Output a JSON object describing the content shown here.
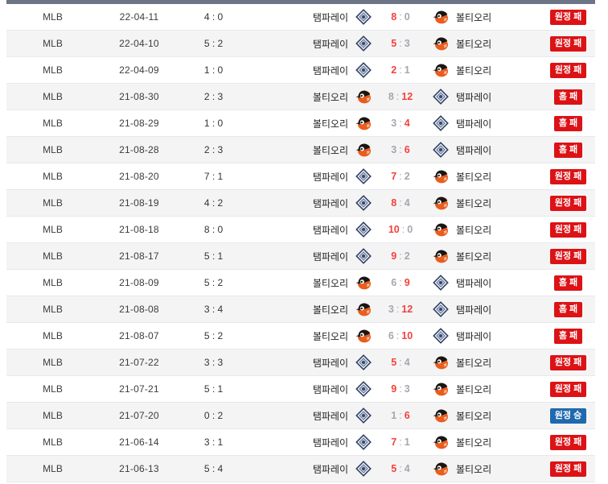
{
  "page": {
    "title": "MLB head-to-head results table"
  },
  "teams": {
    "tampa": {
      "name": "탬파레이",
      "icon": "rays-diamond-icon"
    },
    "balt": {
      "name": "볼티오리",
      "icon": "orioles-bird-icon"
    }
  },
  "colors": {
    "top_bar": "#6b7585",
    "row_alt_bg": "#f4f4f5",
    "badge_loss_red": "#dc1216",
    "badge_win_blue": "#1f69ae",
    "score_winner_red": "#f4403c",
    "score_loser_gray": "#a2a8b0"
  },
  "rows": [
    {
      "league": "MLB",
      "date": "22-04-11",
      "half_score": "4 : 0",
      "home": "탬파레이",
      "home_team": "tampa",
      "away": "볼티오리",
      "away_team": "balt",
      "score_home": "8",
      "score_away": "0",
      "win_side": "home",
      "result": "원정 패",
      "result_type": "loss"
    },
    {
      "league": "MLB",
      "date": "22-04-10",
      "half_score": "5 : 2",
      "home": "탬파레이",
      "home_team": "tampa",
      "away": "볼티오리",
      "away_team": "balt",
      "score_home": "5",
      "score_away": "3",
      "win_side": "home",
      "result": "원정 패",
      "result_type": "loss"
    },
    {
      "league": "MLB",
      "date": "22-04-09",
      "half_score": "1 : 0",
      "home": "탬파레이",
      "home_team": "tampa",
      "away": "볼티오리",
      "away_team": "balt",
      "score_home": "2",
      "score_away": "1",
      "win_side": "home",
      "result": "원정 패",
      "result_type": "loss"
    },
    {
      "league": "MLB",
      "date": "21-08-30",
      "half_score": "2 : 3",
      "home": "볼티오리",
      "home_team": "balt",
      "away": "탬파레이",
      "away_team": "tampa",
      "score_home": "8",
      "score_away": "12",
      "win_side": "away",
      "result": "홈 패",
      "result_type": "loss"
    },
    {
      "league": "MLB",
      "date": "21-08-29",
      "half_score": "1 : 0",
      "home": "볼티오리",
      "home_team": "balt",
      "away": "탬파레이",
      "away_team": "tampa",
      "score_home": "3",
      "score_away": "4",
      "win_side": "away",
      "result": "홈 패",
      "result_type": "loss"
    },
    {
      "league": "MLB",
      "date": "21-08-28",
      "half_score": "2 : 3",
      "home": "볼티오리",
      "home_team": "balt",
      "away": "탬파레이",
      "away_team": "tampa",
      "score_home": "3",
      "score_away": "6",
      "win_side": "away",
      "result": "홈 패",
      "result_type": "loss"
    },
    {
      "league": "MLB",
      "date": "21-08-20",
      "half_score": "7 : 1",
      "home": "탬파레이",
      "home_team": "tampa",
      "away": "볼티오리",
      "away_team": "balt",
      "score_home": "7",
      "score_away": "2",
      "win_side": "home",
      "result": "원정 패",
      "result_type": "loss"
    },
    {
      "league": "MLB",
      "date": "21-08-19",
      "half_score": "4 : 2",
      "home": "탬파레이",
      "home_team": "tampa",
      "away": "볼티오리",
      "away_team": "balt",
      "score_home": "8",
      "score_away": "4",
      "win_side": "home",
      "result": "원정 패",
      "result_type": "loss"
    },
    {
      "league": "MLB",
      "date": "21-08-18",
      "half_score": "8 : 0",
      "home": "탬파레이",
      "home_team": "tampa",
      "away": "볼티오리",
      "away_team": "balt",
      "score_home": "10",
      "score_away": "0",
      "win_side": "home",
      "result": "원정 패",
      "result_type": "loss"
    },
    {
      "league": "MLB",
      "date": "21-08-17",
      "half_score": "5 : 1",
      "home": "탬파레이",
      "home_team": "tampa",
      "away": "볼티오리",
      "away_team": "balt",
      "score_home": "9",
      "score_away": "2",
      "win_side": "home",
      "result": "원정 패",
      "result_type": "loss"
    },
    {
      "league": "MLB",
      "date": "21-08-09",
      "half_score": "5 : 2",
      "home": "볼티오리",
      "home_team": "balt",
      "away": "탬파레이",
      "away_team": "tampa",
      "score_home": "6",
      "score_away": "9",
      "win_side": "away",
      "result": "홈 패",
      "result_type": "loss"
    },
    {
      "league": "MLB",
      "date": "21-08-08",
      "half_score": "3 : 4",
      "home": "볼티오리",
      "home_team": "balt",
      "away": "탬파레이",
      "away_team": "tampa",
      "score_home": "3",
      "score_away": "12",
      "win_side": "away",
      "result": "홈 패",
      "result_type": "loss"
    },
    {
      "league": "MLB",
      "date": "21-08-07",
      "half_score": "5 : 2",
      "home": "볼티오리",
      "home_team": "balt",
      "away": "탬파레이",
      "away_team": "tampa",
      "score_home": "6",
      "score_away": "10",
      "win_side": "away",
      "result": "홈 패",
      "result_type": "loss"
    },
    {
      "league": "MLB",
      "date": "21-07-22",
      "half_score": "3 : 3",
      "home": "탬파레이",
      "home_team": "tampa",
      "away": "볼티오리",
      "away_team": "balt",
      "score_home": "5",
      "score_away": "4",
      "win_side": "home",
      "result": "원정 패",
      "result_type": "loss"
    },
    {
      "league": "MLB",
      "date": "21-07-21",
      "half_score": "5 : 1",
      "home": "탬파레이",
      "home_team": "tampa",
      "away": "볼티오리",
      "away_team": "balt",
      "score_home": "9",
      "score_away": "3",
      "win_side": "home",
      "result": "원정 패",
      "result_type": "loss"
    },
    {
      "league": "MLB",
      "date": "21-07-20",
      "half_score": "0 : 2",
      "home": "탬파레이",
      "home_team": "tampa",
      "away": "볼티오리",
      "away_team": "balt",
      "score_home": "1",
      "score_away": "6",
      "win_side": "away",
      "result": "원정 승",
      "result_type": "win"
    },
    {
      "league": "MLB",
      "date": "21-06-14",
      "half_score": "3 : 1",
      "home": "탬파레이",
      "home_team": "tampa",
      "away": "볼티오리",
      "away_team": "balt",
      "score_home": "7",
      "score_away": "1",
      "win_side": "home",
      "result": "원정 패",
      "result_type": "loss"
    },
    {
      "league": "MLB",
      "date": "21-06-13",
      "half_score": "5 : 4",
      "home": "탬파레이",
      "home_team": "tampa",
      "away": "볼티오리",
      "away_team": "balt",
      "score_home": "5",
      "score_away": "4",
      "win_side": "home",
      "result": "원정 패",
      "result_type": "loss"
    }
  ]
}
